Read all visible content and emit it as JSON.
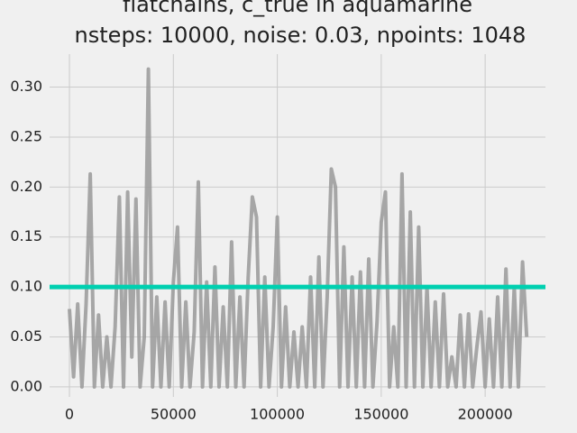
{
  "chart_data": {
    "type": "line",
    "title": "flatchains, c_true in aquamarine",
    "subtitle": "nsteps: 10000, noise: 0.03, npoints: 1048",
    "x": [
      0,
      2000,
      4000,
      6000,
      8000,
      10000,
      12000,
      14000,
      16000,
      18000,
      20000,
      22000,
      24000,
      26000,
      28000,
      30000,
      32000,
      34000,
      36000,
      38000,
      40000,
      42000,
      44000,
      46000,
      48000,
      50000,
      52000,
      54000,
      56000,
      58000,
      60000,
      62000,
      64000,
      66000,
      68000,
      70000,
      72000,
      74000,
      76000,
      78000,
      80000,
      82000,
      84000,
      86000,
      88000,
      90000,
      92000,
      94000,
      96000,
      98000,
      100000,
      102000,
      104000,
      106000,
      108000,
      110000,
      112000,
      114000,
      116000,
      118000,
      120000,
      122000,
      124000,
      126000,
      128000,
      130000,
      132000,
      134000,
      136000,
      138000,
      140000,
      142000,
      144000,
      146000,
      148000,
      150000,
      152000,
      154000,
      156000,
      158000,
      160000,
      162000,
      164000,
      166000,
      168000,
      170000,
      172000,
      174000,
      176000,
      178000,
      180000,
      182000,
      184000,
      186000,
      188000,
      190000,
      192000,
      194000,
      196000,
      198000,
      200000,
      202000,
      204000,
      206000,
      208000,
      210000,
      212000,
      214000,
      216000,
      218000,
      220000
    ],
    "series": [
      {
        "color": "#999999",
        "values": [
          0.078,
          0.01,
          0.083,
          0.0,
          0.083,
          0.213,
          0.0,
          0.072,
          0.0,
          0.05,
          0.0,
          0.06,
          0.19,
          0.0,
          0.195,
          0.03,
          0.188,
          0.0,
          0.05,
          0.318,
          0.0,
          0.09,
          0.0,
          0.085,
          0.0,
          0.105,
          0.16,
          0.0,
          0.085,
          0.0,
          0.055,
          0.205,
          0.0,
          0.105,
          0.0,
          0.12,
          0.0,
          0.08,
          0.0,
          0.145,
          0.0,
          0.09,
          0.0,
          0.11,
          0.19,
          0.17,
          0.0,
          0.11,
          0.0,
          0.06,
          0.17,
          0.0,
          0.08,
          0.0,
          0.055,
          0.0,
          0.06,
          0.0,
          0.11,
          0.0,
          0.13,
          0.0,
          0.09,
          0.218,
          0.2,
          0.0,
          0.14,
          0.0,
          0.11,
          0.0,
          0.115,
          0.0,
          0.128,
          0.0,
          0.065,
          0.165,
          0.195,
          0.0,
          0.06,
          0.0,
          0.213,
          0.0,
          0.175,
          0.0,
          0.16,
          0.0,
          0.1,
          0.0,
          0.085,
          0.0,
          0.093,
          0.0,
          0.03,
          0.0,
          0.072,
          0.0,
          0.073,
          0.0,
          0.04,
          0.075,
          0.0,
          0.068,
          0.0,
          0.09,
          0.0,
          0.118,
          0.0,
          0.1,
          0.0,
          0.125,
          0.05
        ]
      }
    ],
    "reference_line": {
      "value": 0.1,
      "color": "#00d0b0"
    },
    "xlim": [
      -9550,
      229000
    ],
    "ylim": [
      -0.01,
      0.333
    ],
    "xticks": [
      0,
      50000,
      100000,
      150000,
      200000
    ],
    "yticks": [
      {
        "value": 0,
        "label": "0.00"
      },
      {
        "value": 0.05,
        "label": "0.05"
      },
      {
        "value": 0.1,
        "label": "0.10"
      },
      {
        "value": 0.15,
        "label": "0.15"
      },
      {
        "value": 0.2,
        "label": "0.20"
      },
      {
        "value": 0.25,
        "label": "0.25"
      },
      {
        "value": 0.3,
        "label": "0.30"
      }
    ],
    "grid": true
  }
}
